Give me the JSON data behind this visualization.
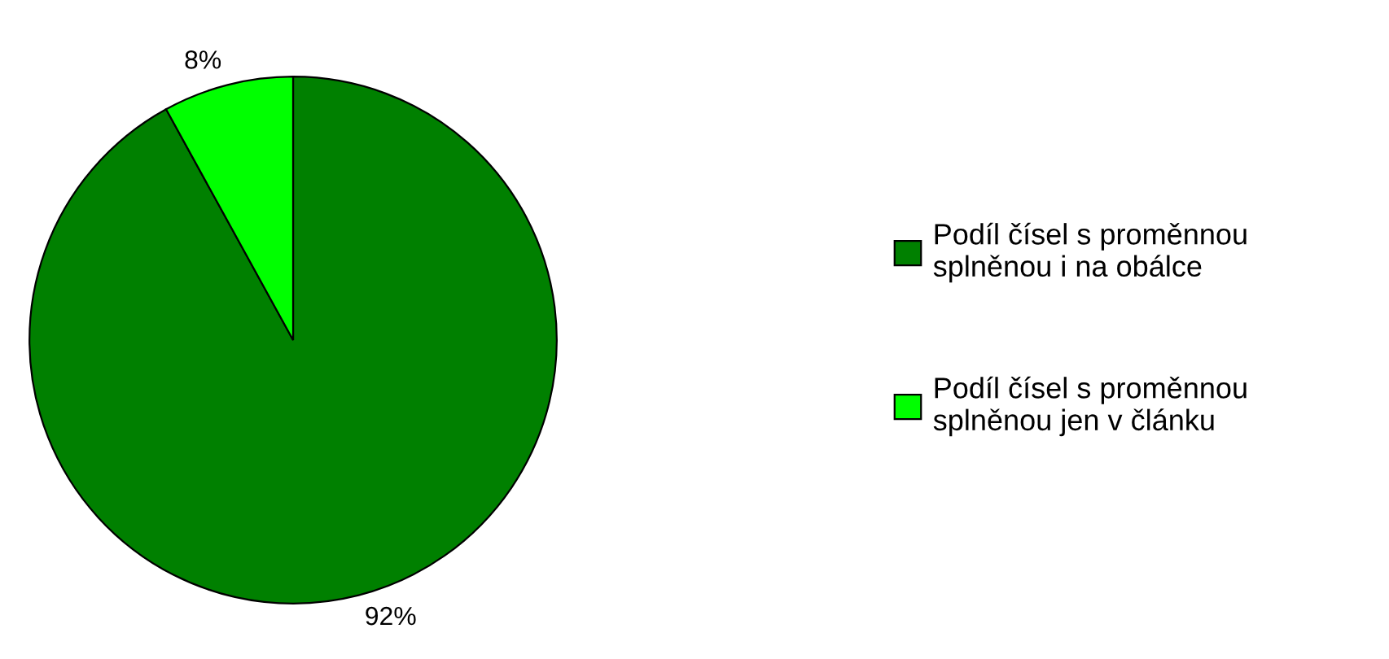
{
  "chart_data": {
    "type": "pie",
    "categories": [
      "Podíl čísel s proměnnou\nsplněnou i na obálce",
      "Podíl čísel s proměnnou\nsplněnou jen v článku"
    ],
    "values": [
      92,
      8
    ],
    "colors": [
      "#008000",
      "#00ff00"
    ],
    "value_labels": [
      "92%",
      "8%"
    ],
    "legend": "right"
  }
}
